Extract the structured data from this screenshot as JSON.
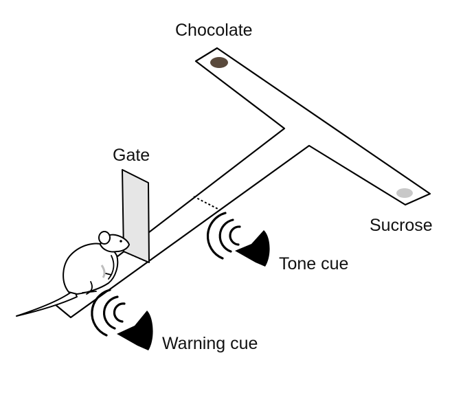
{
  "labels": {
    "chocolate": "Chocolate",
    "gate": "Gate",
    "sucrose": "Sucrose",
    "tone_cue": "Tone cue",
    "warning_cue": "Warning cue"
  },
  "colors": {
    "chocolate_reward": "#5a4a3c",
    "sucrose_reward": "#c8c8c8",
    "gate_fill": "#e6e6e6",
    "outline": "#000000"
  },
  "icons": {
    "speaker": "speaker-icon",
    "sound_waves": "sound-waves-icon",
    "mouse": "mouse-icon"
  }
}
